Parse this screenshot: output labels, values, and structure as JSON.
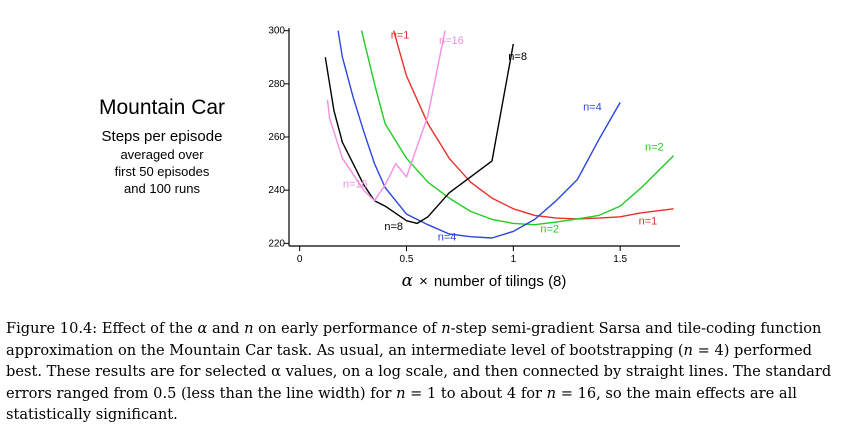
{
  "chart_data": {
    "type": "line",
    "title": "Mountain Car",
    "ylabel_lines": [
      "Steps per episode",
      "averaged over",
      "first 50 episodes",
      "and 100 runs"
    ],
    "xlabel": {
      "alpha": "α",
      "times": "×",
      "rest": "number of tilings (8)"
    },
    "xlim": [
      -0.05,
      1.78
    ],
    "ylim": [
      219,
      301
    ],
    "x_ticks": [
      0,
      0.5,
      1,
      1.5
    ],
    "x_tick_labels": [
      "0",
      "0.5",
      "1",
      "1.5"
    ],
    "y_ticks": [
      220,
      240,
      260,
      280,
      300
    ],
    "y_tick_labels": [
      "220",
      "240",
      "260",
      "280",
      "300"
    ],
    "grid": false,
    "legend": "inline labels",
    "series": [
      {
        "name": "n=1",
        "color": "#e8302a",
        "points": [
          [
            0.44,
            300
          ],
          [
            0.5,
            283
          ],
          [
            0.6,
            265
          ],
          [
            0.7,
            252
          ],
          [
            0.8,
            243
          ],
          [
            0.9,
            237
          ],
          [
            1.0,
            233
          ],
          [
            1.1,
            230.5
          ],
          [
            1.2,
            229.5
          ],
          [
            1.3,
            229.2
          ],
          [
            1.4,
            229.5
          ],
          [
            1.5,
            230
          ],
          [
            1.6,
            231.5
          ],
          [
            1.75,
            233
          ]
        ],
        "labels": [
          {
            "text": "n=1",
            "x": 0.47,
            "y": 297
          },
          {
            "text": "n=1",
            "x": 1.63,
            "y": 227
          }
        ]
      },
      {
        "name": "n=2",
        "color": "#22cc22",
        "points": [
          [
            0.29,
            300
          ],
          [
            0.35,
            280
          ],
          [
            0.4,
            265
          ],
          [
            0.5,
            252
          ],
          [
            0.6,
            243
          ],
          [
            0.7,
            237
          ],
          [
            0.8,
            232
          ],
          [
            0.9,
            229
          ],
          [
            1.0,
            227.5
          ],
          [
            1.1,
            227
          ],
          [
            1.2,
            228
          ],
          [
            1.3,
            229.2
          ],
          [
            1.4,
            230.5
          ],
          [
            1.5,
            234
          ],
          [
            1.6,
            241
          ],
          [
            1.75,
            253
          ]
        ],
        "labels": [
          {
            "text": "n=2",
            "x": 1.66,
            "y": 255
          },
          {
            "text": "n=2",
            "x": 1.17,
            "y": 224
          }
        ]
      },
      {
        "name": "n=4",
        "color": "#2b47dd",
        "points": [
          [
            0.18,
            300
          ],
          [
            0.2,
            290
          ],
          [
            0.25,
            275
          ],
          [
            0.3,
            262
          ],
          [
            0.35,
            250
          ],
          [
            0.4,
            241
          ],
          [
            0.45,
            236
          ],
          [
            0.5,
            231
          ],
          [
            0.6,
            227
          ],
          [
            0.7,
            223.5
          ],
          [
            0.8,
            222.5
          ],
          [
            0.9,
            222
          ],
          [
            1.0,
            224.5
          ],
          [
            1.1,
            229
          ],
          [
            1.2,
            236
          ],
          [
            1.3,
            244
          ],
          [
            1.4,
            259
          ],
          [
            1.5,
            273
          ]
        ],
        "labels": [
          {
            "text": "n=4",
            "x": 1.37,
            "y": 270
          },
          {
            "text": "n=4",
            "x": 0.69,
            "y": 221
          }
        ]
      },
      {
        "name": "n=8",
        "color": "#000000",
        "points": [
          [
            0.12,
            290
          ],
          [
            0.14,
            280
          ],
          [
            0.16,
            270
          ],
          [
            0.2,
            258
          ],
          [
            0.25,
            250
          ],
          [
            0.3,
            242
          ],
          [
            0.35,
            236
          ],
          [
            0.4,
            234
          ],
          [
            0.5,
            228.5
          ],
          [
            0.55,
            227.5
          ],
          [
            0.6,
            230
          ],
          [
            0.7,
            239
          ],
          [
            0.8,
            245
          ],
          [
            0.9,
            251
          ],
          [
            1.0,
            295
          ]
        ],
        "labels": [
          {
            "text": "n=8",
            "x": 1.02,
            "y": 289
          },
          {
            "text": "n=8",
            "x": 0.44,
            "y": 225
          }
        ]
      },
      {
        "name": "n=16",
        "color": "#f48fe0",
        "points": [
          [
            0.13,
            274
          ],
          [
            0.14,
            267
          ],
          [
            0.16,
            262
          ],
          [
            0.2,
            252
          ],
          [
            0.25,
            246
          ],
          [
            0.3,
            240
          ],
          [
            0.35,
            236
          ],
          [
            0.4,
            242
          ],
          [
            0.45,
            250
          ],
          [
            0.5,
            245
          ],
          [
            0.6,
            268
          ],
          [
            0.68,
            300
          ]
        ],
        "labels": [
          {
            "text": "n=16",
            "x": 0.71,
            "y": 295
          },
          {
            "text": "n=16",
            "x": 0.26,
            "y": 241
          }
        ]
      }
    ]
  },
  "caption": {
    "l1": [
      "Figure 10.4: Effect of the ",
      "α",
      " and ",
      "n",
      " on early performance of ",
      "n",
      "-step semi-gradient Sarsa and tile-coding function"
    ],
    "l2": [
      "approximation on the Mountain Car task. As usual, an intermediate level of bootstrapping (",
      "n",
      " = 4) performed"
    ],
    "l3": "best. These results are for selected α values, on a log scale, and then connected by straight lines. The standard",
    "l4": [
      "errors ranged from 0.5 (less than the line width) for ",
      "n",
      " = 1 to about 4 for ",
      "n",
      " = 16, so the main effects are all"
    ],
    "l5": "statistically significant."
  }
}
